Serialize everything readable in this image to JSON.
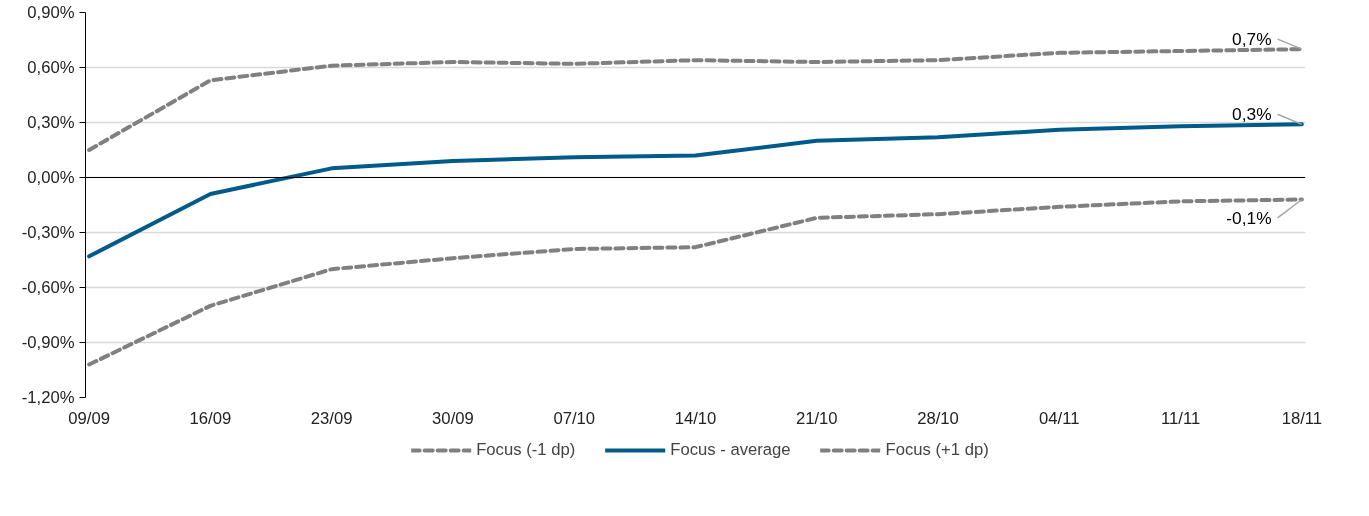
{
  "chart_data": {
    "type": "line",
    "categories": [
      "09/09",
      "16/09",
      "23/09",
      "30/09",
      "07/10",
      "14/10",
      "21/10",
      "28/10",
      "04/11",
      "11/11",
      "18/11"
    ],
    "series": [
      {
        "name": "Focus (-1 dp)",
        "color": "#808080",
        "line_style": "dashed",
        "values": [
          -1.02,
          -0.7,
          -0.5,
          -0.44,
          -0.39,
          -0.38,
          -0.22,
          -0.2,
          -0.16,
          -0.13,
          -0.12
        ]
      },
      {
        "name": "Focus - average",
        "color": "#005b8a",
        "line_style": "solid",
        "values": [
          -0.43,
          -0.09,
          0.05,
          0.09,
          0.11,
          0.12,
          0.2,
          0.22,
          0.26,
          0.28,
          0.29
        ]
      },
      {
        "name": "Focus (+1 dp)",
        "color": "#808080",
        "line_style": "dashed",
        "values": [
          0.15,
          0.53,
          0.61,
          0.63,
          0.62,
          0.64,
          0.63,
          0.64,
          0.68,
          0.69,
          0.7
        ]
      }
    ],
    "ylim": [
      -1.2,
      0.9
    ],
    "yticks": [
      {
        "value": -1.2,
        "label": "-1,20%"
      },
      {
        "value": -0.9,
        "label": "-0,90%"
      },
      {
        "value": -0.6,
        "label": "-0,60%"
      },
      {
        "value": -0.3,
        "label": "-0,30%"
      },
      {
        "value": 0,
        "label": "0,00%"
      },
      {
        "value": 0.3,
        "label": "0,30%"
      },
      {
        "value": 0.6,
        "label": "0,60%"
      },
      {
        "value": 0.9,
        "label": "0,90%"
      }
    ],
    "annotations": [
      {
        "text": "0,7%",
        "x": "18/11",
        "y": 0.7
      },
      {
        "text": "0,3%",
        "x": "18/11",
        "y": 0.29
      },
      {
        "text": "-0,1%",
        "x": "18/11",
        "y": -0.12
      }
    ],
    "grid": "y",
    "legend": "bottom",
    "marker": "none"
  }
}
